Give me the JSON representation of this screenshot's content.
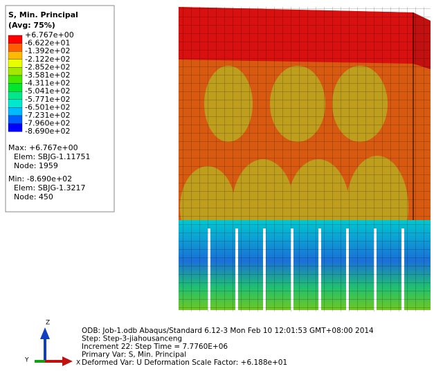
{
  "legend": {
    "title": "S, Min. Principal",
    "subtitle": "(Avg: 75%)",
    "levels": [
      "+6.767e+00",
      "-6.622e+01",
      "-1.392e+02",
      "-2.122e+02",
      "-2.852e+02",
      "-3.581e+02",
      "-4.311e+02",
      "-5.041e+02",
      "-5.771e+02",
      "-6.501e+02",
      "-7.231e+02",
      "-7.960e+02",
      "-8.690e+02"
    ],
    "colors": [
      "#ff0000",
      "#ff5d00",
      "#ffb900",
      "#e8ff00",
      "#a2e800",
      "#46e800",
      "#00e82e",
      "#00e88b",
      "#00e8d0",
      "#00b9ff",
      "#005dff",
      "#0000ff"
    ]
  },
  "max": {
    "label": "Max: +6.767e+00",
    "elem": "Elem: SBJG-1.11751",
    "node": "Node: 1959"
  },
  "min": {
    "label": "Min: -8.690e+02",
    "elem": "Elem: SBJG-1.3217",
    "node": "Node: 450"
  },
  "footer": [
    "ODB: Job-1.odb    Abaqus/Standard 6.12-3    Mon Feb 10 12:01:53 GMT+08:00 2014",
    "Step: Step-3-jiahousanceng",
    "Increment     22: Step Time =    7.7760E+06",
    "Primary Var: S, Min. Principal",
    "Deformed Var: U   Deformation Scale Factor: +6.188e+01"
  ],
  "triad": {
    "z": "Z",
    "y": "Y",
    "x": "X"
  }
}
